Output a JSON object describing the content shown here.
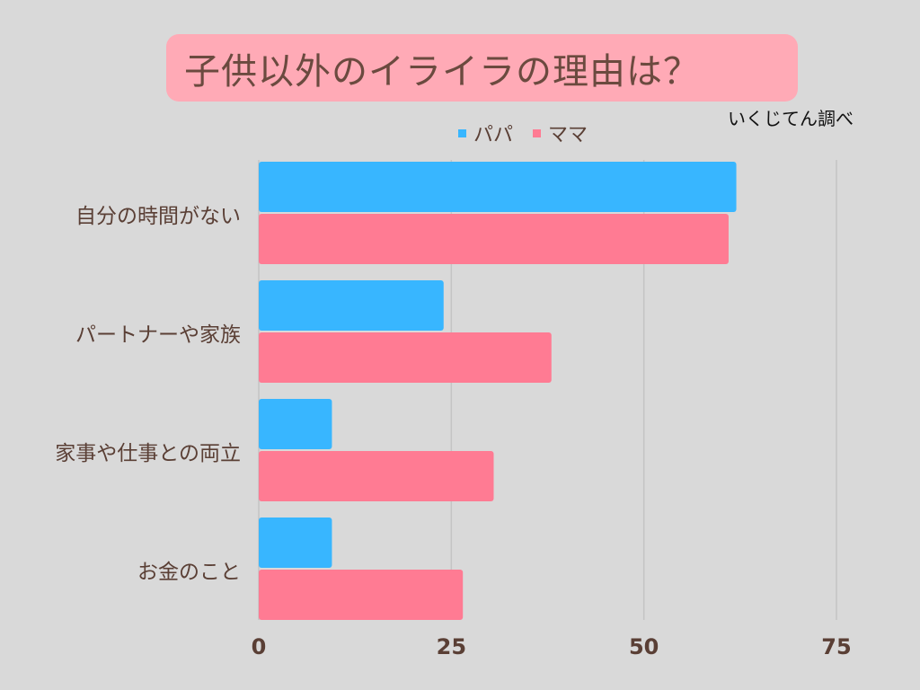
{
  "title": "子供以外のイライラの理由は？",
  "source_note": "いくじてん調べ",
  "colors": {
    "papa": "#38b6ff",
    "mama": "#ff7b93",
    "grid": "#c4c4c4"
  },
  "chart_data": {
    "type": "bar",
    "orientation": "horizontal",
    "categories": [
      "自分の時間がない",
      "パートナーや家族",
      "家事や仕事との両立",
      "お金のこと"
    ],
    "series": [
      {
        "name": "パパ",
        "values": [
          62,
          24,
          9.5,
          9.5
        ]
      },
      {
        "name": "ママ",
        "values": [
          61,
          38,
          30.5,
          26.5
        ]
      }
    ],
    "xlim": [
      0,
      75
    ],
    "xticks": [
      "0",
      "25",
      "50",
      "75"
    ],
    "grid": true,
    "legend": "top-center"
  }
}
